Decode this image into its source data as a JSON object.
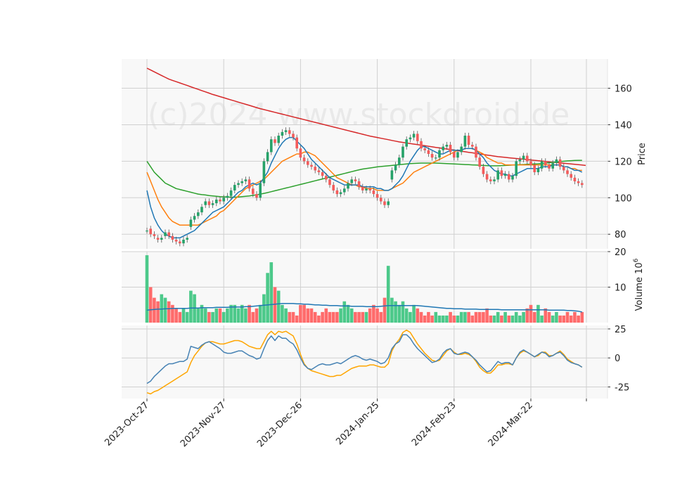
{
  "chart_data": {
    "type": "candlestick",
    "watermark": "(c)2024 www.stockdroid.de",
    "colors": {
      "up": "#26a269",
      "down": "#f45b5b",
      "up_volume": "#4cc98a",
      "down_volume": "#ff6b6b",
      "ma_short": "#1f77b4",
      "ma_mid": "#ff7f0e",
      "ma_long": "#2ca02c",
      "ma_200": "#d62728",
      "osc_a": "#4682b4",
      "osc_b": "#ffa500",
      "panel_bg": "#f8f8f8",
      "grid": "#d0d0d0"
    },
    "x_axis": {
      "ticks": [
        {
          "index": 0,
          "label": "2023-Oct-27"
        },
        {
          "index": 21,
          "label": "2023-Nov-27"
        },
        {
          "index": 42,
          "label": "2023-Dec-26"
        },
        {
          "index": 63,
          "label": "2024-Jan-25"
        },
        {
          "index": 84,
          "label": "2024-Feb-23"
        },
        {
          "index": 105,
          "label": "2024-Mar-22"
        }
      ]
    },
    "price_panel": {
      "ylabel": "Price",
      "ylim": [
        72,
        176
      ],
      "yticks": [
        80,
        100,
        120,
        140,
        160
      ]
    },
    "volume_panel": {
      "ylabel": "Volume  10",
      "ylabel_exponent": "6",
      "ylim": [
        0,
        20
      ],
      "yticks": [
        10,
        20
      ]
    },
    "oscillator_panel": {
      "ylim": [
        -35,
        28
      ],
      "yticks": [
        -25,
        0,
        25
      ]
    },
    "close": [
      82,
      80,
      79,
      77,
      78,
      81,
      79,
      77,
      76,
      75,
      77,
      78,
      88,
      90,
      92,
      95,
      98,
      96,
      97,
      99,
      98,
      100,
      101,
      104,
      107,
      108,
      109,
      110,
      105,
      102,
      100,
      108,
      120,
      125,
      132,
      130,
      134,
      136,
      137,
      135,
      133,
      127,
      122,
      120,
      118,
      117,
      115,
      114,
      112,
      110,
      107,
      104,
      102,
      103,
      105,
      108,
      110,
      109,
      106,
      104,
      105,
      104,
      102,
      100,
      98,
      96,
      98,
      115,
      118,
      122,
      128,
      132,
      133,
      135,
      131,
      127,
      126,
      124,
      122,
      122,
      126,
      128,
      129,
      125,
      122,
      125,
      128,
      134,
      129,
      128,
      122,
      117,
      113,
      110,
      109,
      110,
      115,
      112,
      113,
      110,
      112,
      120,
      121,
      123,
      120,
      118,
      114,
      116,
      120,
      118,
      116,
      119,
      121,
      117,
      115,
      113,
      111,
      109,
      108,
      107
    ],
    "open": [
      82,
      83,
      80,
      78,
      77,
      79,
      81,
      79,
      77,
      76,
      75,
      77,
      84,
      88,
      90,
      92,
      96,
      98,
      96,
      97,
      99,
      98,
      100,
      101,
      104,
      107,
      108,
      109,
      110,
      105,
      102,
      100,
      108,
      120,
      125,
      132,
      130,
      134,
      136,
      137,
      135,
      133,
      127,
      122,
      120,
      118,
      117,
      115,
      114,
      112,
      110,
      107,
      104,
      102,
      103,
      105,
      108,
      110,
      109,
      106,
      104,
      105,
      104,
      102,
      100,
      98,
      96,
      110,
      115,
      118,
      122,
      128,
      132,
      133,
      135,
      131,
      127,
      126,
      124,
      122,
      122,
      126,
      128,
      129,
      125,
      122,
      125,
      128,
      134,
      129,
      128,
      122,
      117,
      113,
      110,
      109,
      110,
      115,
      112,
      113,
      110,
      112,
      120,
      121,
      123,
      120,
      118,
      114,
      116,
      120,
      118,
      116,
      119,
      121,
      117,
      115,
      113,
      111,
      109,
      108
    ],
    "volume": [
      19,
      10,
      7,
      6,
      8,
      7,
      6,
      5,
      4,
      3,
      4,
      3,
      9,
      8,
      4,
      5,
      4,
      3,
      3,
      4,
      4,
      3,
      4,
      5,
      5,
      4,
      5,
      4,
      5,
      3,
      4,
      5,
      8,
      14,
      17,
      10,
      9,
      5,
      4,
      3,
      3,
      2,
      5,
      5,
      4,
      4,
      3,
      2,
      3,
      4,
      3,
      3,
      3,
      4,
      6,
      5,
      4,
      3,
      3,
      3,
      3,
      4,
      5,
      4,
      3,
      7,
      16,
      7,
      6,
      5,
      6,
      4,
      3,
      5,
      4,
      3,
      2,
      3,
      2,
      3,
      2,
      2,
      2,
      3,
      2,
      2,
      3,
      3,
      3,
      2,
      3,
      3,
      3,
      4,
      2,
      2,
      3,
      2,
      3,
      2,
      2,
      3,
      2,
      3,
      4,
      5,
      3,
      5,
      2,
      4,
      3,
      2,
      3,
      2,
      2,
      3,
      2,
      3,
      2,
      3
    ],
    "ma_short": [
      104,
      95,
      89,
      85,
      82,
      80,
      79,
      78,
      78,
      78,
      79,
      80,
      81,
      82,
      84,
      86,
      88,
      90,
      92,
      93,
      94,
      95,
      97,
      99,
      101,
      103,
      104,
      106,
      107,
      108,
      107,
      108,
      111,
      114,
      119,
      123,
      127,
      130,
      132,
      133,
      133,
      131,
      129,
      127,
      124,
      121,
      119,
      117,
      115,
      113,
      111,
      110,
      109,
      108,
      107,
      107,
      107,
      107,
      107,
      106,
      106,
      106,
      106,
      105,
      105,
      104,
      104,
      105,
      107,
      109,
      112,
      116,
      120,
      123,
      126,
      128,
      128,
      127,
      126,
      125,
      124,
      124,
      125,
      126,
      126,
      126,
      126,
      127,
      127,
      127,
      126,
      124,
      122,
      119,
      117,
      115,
      114,
      113,
      113,
      112,
      112,
      113,
      114,
      115,
      116,
      116,
      116,
      116,
      117,
      117,
      117,
      118,
      118,
      118,
      117,
      117,
      116,
      115,
      115,
      114
    ],
    "ma_mid": [
      114,
      109,
      104,
      99,
      95,
      92,
      89,
      87,
      86,
      85,
      85,
      85,
      85,
      85,
      85,
      86,
      87,
      88,
      89,
      90,
      92,
      93,
      95,
      97,
      99,
      101,
      103,
      105,
      106,
      107,
      108,
      109,
      110,
      112,
      114,
      116,
      118,
      120,
      121,
      122,
      123,
      124,
      124,
      125,
      125,
      124,
      123,
      121,
      119,
      117,
      115,
      113,
      111,
      110,
      109,
      108,
      107,
      107,
      106,
      106,
      105,
      105,
      105,
      104,
      104,
      104,
      104,
      105,
      106,
      107,
      108,
      110,
      112,
      114,
      115,
      116,
      117,
      118,
      119,
      120,
      121,
      122,
      123,
      124,
      125,
      126,
      126,
      127,
      127,
      127,
      126,
      125,
      124,
      122,
      121,
      120,
      119,
      119,
      118,
      118,
      118,
      118,
      118,
      118,
      118,
      118,
      118,
      118,
      118,
      118,
      118,
      118,
      118,
      118,
      117,
      117,
      116,
      116,
      115,
      115
    ],
    "ma_long": [
      120,
      117,
      114,
      112,
      110,
      108,
      107,
      106,
      105,
      104.5,
      104,
      103.5,
      103,
      102.5,
      102,
      101.7,
      101.5,
      101.2,
      101,
      100.8,
      100.6,
      100.5,
      100.4,
      100.3,
      100.3,
      100.4,
      100.6,
      100.8,
      101,
      101.3,
      101.6,
      102,
      102.4,
      102.8,
      103.3,
      103.8,
      104.3,
      104.8,
      105.3,
      105.8,
      106.3,
      106.8,
      107.3,
      107.8,
      108.3,
      108.8,
      109.3,
      109.8,
      110.3,
      110.8,
      111.3,
      111.8,
      112.3,
      112.8,
      113.3,
      113.8,
      114.3,
      114.8,
      115.3,
      115.7,
      116,
      116.3,
      116.6,
      116.9,
      117.1,
      117.3,
      117.5,
      117.7,
      117.9,
      118.1,
      118.3,
      118.5,
      118.7,
      118.8,
      118.9,
      119,
      119,
      119,
      119,
      119,
      118.9,
      118.8,
      118.7,
      118.6,
      118.5,
      118.4,
      118.3,
      118.2,
      118.1,
      118,
      117.9,
      117.8,
      117.7,
      117.6,
      117.5,
      117.5,
      117.5,
      117.6,
      117.7,
      117.8,
      117.9,
      118,
      118.1,
      118.2,
      118.3,
      118.4,
      118.5,
      118.6,
      118.8,
      119,
      119.2,
      119.4,
      119.6,
      119.8,
      120,
      120.2,
      120.3,
      120.4,
      120.5,
      120.5
    ],
    "ma_200": [
      171,
      170,
      169,
      168,
      167,
      166,
      165,
      164.3,
      163.6,
      162.9,
      162.2,
      161.5,
      160.8,
      160.1,
      159.4,
      158.7,
      158,
      157.3,
      156.6,
      156,
      155.4,
      154.8,
      154.2,
      153.6,
      153,
      152.4,
      151.8,
      151.2,
      150.6,
      150,
      149.4,
      148.8,
      148.3,
      147.8,
      147.3,
      146.8,
      146.3,
      145.8,
      145.3,
      144.8,
      144.3,
      143.8,
      143.3,
      142.8,
      142.3,
      141.8,
      141.3,
      140.8,
      140.3,
      139.8,
      139.3,
      138.8,
      138.3,
      137.8,
      137.3,
      136.8,
      136.3,
      135.8,
      135.3,
      134.8,
      134.3,
      133.8,
      133.4,
      133,
      132.6,
      132.2,
      131.8,
      131.4,
      131,
      130.6,
      130.3,
      130,
      129.7,
      129.4,
      129.1,
      128.8,
      128.5,
      128.2,
      127.9,
      127.6,
      127.3,
      127,
      126.7,
      126.4,
      126.1,
      125.8,
      125.5,
      125.2,
      124.9,
      124.6,
      124.3,
      124,
      123.7,
      123.4,
      123.1,
      122.8,
      122.5,
      122.3,
      122.1,
      121.9,
      121.7,
      121.5,
      121.3,
      121.1,
      120.9,
      120.7,
      120.5,
      120.3,
      120.1,
      119.9,
      119.7,
      119.5,
      119.3,
      119.1,
      118.9,
      118.7,
      118.5,
      118.3,
      118.1,
      117.9,
      117.7
    ],
    "volume_ma": [
      3.5,
      3.6,
      3.7,
      3.8,
      3.8,
      3.9,
      3.9,
      4,
      4,
      4,
      4,
      4,
      4.1,
      4.1,
      4.1,
      4.2,
      4.2,
      4.2,
      4.2,
      4.3,
      4.3,
      4.3,
      4.3,
      4.4,
      4.4,
      4.4,
      4.4,
      4.5,
      4.5,
      4.6,
      4.7,
      4.8,
      4.9,
      5,
      5.1,
      5.2,
      5.3,
      5.4,
      5.4,
      5.4,
      5.4,
      5.3,
      5.3,
      5.2,
      5.2,
      5.1,
      5,
      5,
      4.9,
      4.9,
      4.8,
      4.8,
      4.8,
      4.7,
      4.7,
      4.7,
      4.6,
      4.6,
      4.6,
      4.6,
      4.5,
      4.5,
      4.5,
      4.5,
      4.6,
      4.7,
      4.8,
      4.8,
      4.8,
      4.8,
      4.8,
      4.8,
      4.8,
      4.8,
      4.8,
      4.7,
      4.6,
      4.5,
      4.4,
      4.3,
      4.2,
      4.1,
      4,
      4,
      3.9,
      3.9,
      3.9,
      3.8,
      3.8,
      3.8,
      3.8,
      3.7,
      3.7,
      3.7,
      3.7,
      3.7,
      3.7,
      3.6,
      3.6,
      3.6,
      3.6,
      3.6,
      3.6,
      3.6,
      3.6,
      3.6,
      3.6,
      3.6,
      3.6,
      3.6,
      3.5,
      3.5,
      3.5,
      3.5,
      3.5,
      3.4,
      3.4,
      3.3,
      3.2,
      3
    ],
    "osc_a": [
      -22,
      -20,
      -16,
      -13,
      -10,
      -7,
      -5,
      -5,
      -4,
      -3,
      -3,
      -1,
      10,
      9,
      8,
      11,
      13,
      14,
      12,
      10,
      8,
      5,
      4,
      4,
      5,
      6,
      6,
      4,
      2,
      1,
      -1,
      0,
      8,
      15,
      19,
      15,
      19,
      17,
      17,
      14,
      12,
      7,
      0,
      -6,
      -9,
      -10,
      -8,
      -6,
      -5,
      -6,
      -6,
      -5,
      -4,
      -5,
      -3,
      -1,
      1,
      2,
      1,
      -1,
      -2,
      -1,
      -2,
      -3,
      -5,
      -4,
      0,
      8,
      12,
      14,
      20,
      20,
      17,
      12,
      8,
      5,
      2,
      -1,
      -4,
      -3,
      -1,
      4,
      7,
      8,
      4,
      3,
      4,
      5,
      4,
      1,
      -2,
      -6,
      -9,
      -12,
      -11,
      -7,
      -3,
      -5,
      -4,
      -4,
      -6,
      0,
      5,
      7,
      5,
      3,
      1,
      3,
      5,
      4,
      1,
      2,
      4,
      5,
      2,
      -2,
      -4,
      -5,
      -6,
      -8
    ],
    "osc_b": [
      -30,
      -31,
      -29,
      -28,
      -26,
      -24,
      -22,
      -20,
      -18,
      -16,
      -14,
      -12,
      -4,
      2,
      6,
      10,
      13,
      14,
      14,
      13,
      12,
      12,
      13,
      14,
      15,
      15,
      14,
      12,
      10,
      9,
      8,
      8,
      14,
      20,
      23,
      20,
      23,
      22,
      23,
      21,
      19,
      12,
      3,
      -5,
      -9,
      -11,
      -12,
      -13,
      -14,
      -15,
      -16,
      -16,
      -15,
      -15,
      -13,
      -11,
      -9,
      -8,
      -7,
      -7,
      -7,
      -6,
      -6,
      -7,
      -8,
      -8,
      -5,
      6,
      12,
      16,
      22,
      24,
      22,
      17,
      12,
      8,
      4,
      1,
      -2,
      -3,
      -2,
      2,
      6,
      8,
      5,
      3,
      3,
      4,
      3,
      1,
      -3,
      -8,
      -11,
      -13,
      -13,
      -10,
      -6,
      -6,
      -5,
      -5,
      -6,
      0,
      4,
      6,
      5,
      3,
      1,
      2,
      5,
      5,
      2,
      2,
      4,
      6,
      3,
      -1,
      -3,
      -5,
      -6,
      -8
    ]
  }
}
